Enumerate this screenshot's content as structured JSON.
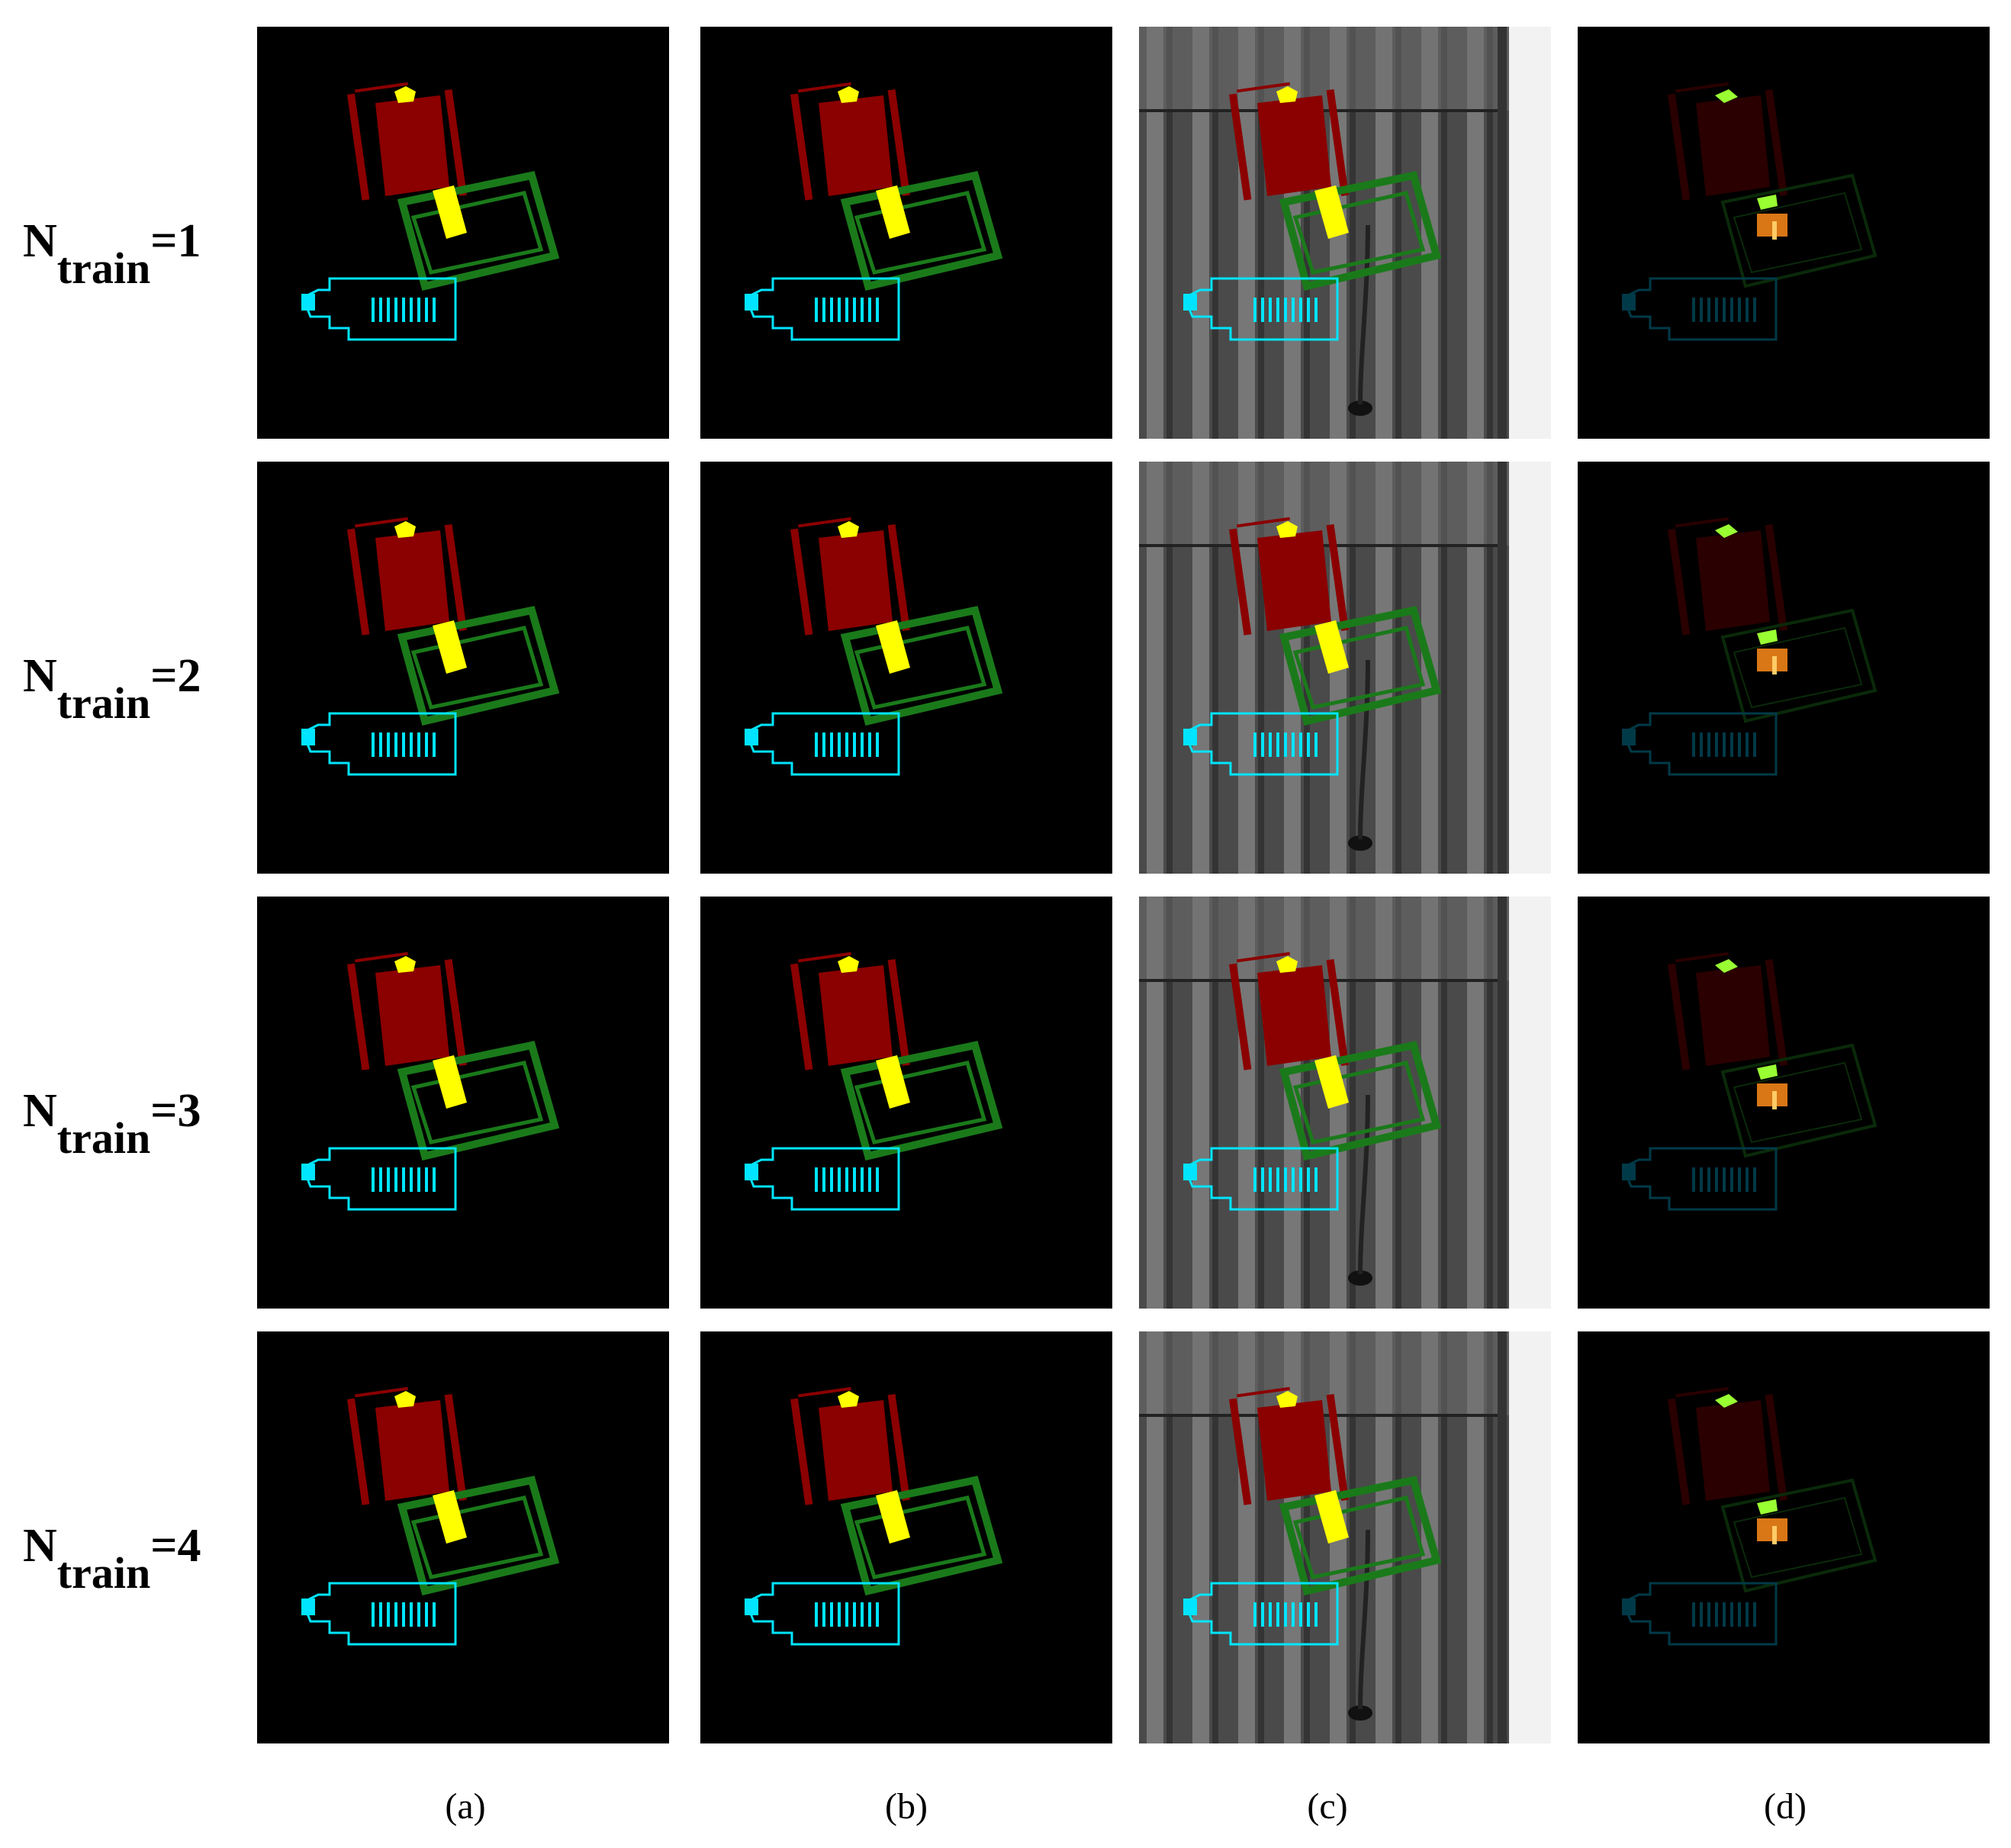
{
  "rows": [
    {
      "n_label": "N",
      "sub_label": "train",
      "value_label": "=1"
    },
    {
      "n_label": "N",
      "sub_label": "train",
      "value_label": "=2"
    },
    {
      "n_label": "N",
      "sub_label": "train",
      "value_label": "=3"
    },
    {
      "n_label": "N",
      "sub_label": "train",
      "value_label": "=4"
    }
  ],
  "columns": [
    "(a)",
    "(b)",
    "(c)",
    "(d)"
  ],
  "colors": {
    "red_part": "#8b0000",
    "yellow_part": "#ffff00",
    "green_part": "#1a7a1a",
    "cyan_part": "#00e5ff",
    "lime_error": "#99ff33",
    "orange_error": "#ff8c1a",
    "panel_bg": "#000000",
    "xray_bg": "#5a5a5a"
  }
}
